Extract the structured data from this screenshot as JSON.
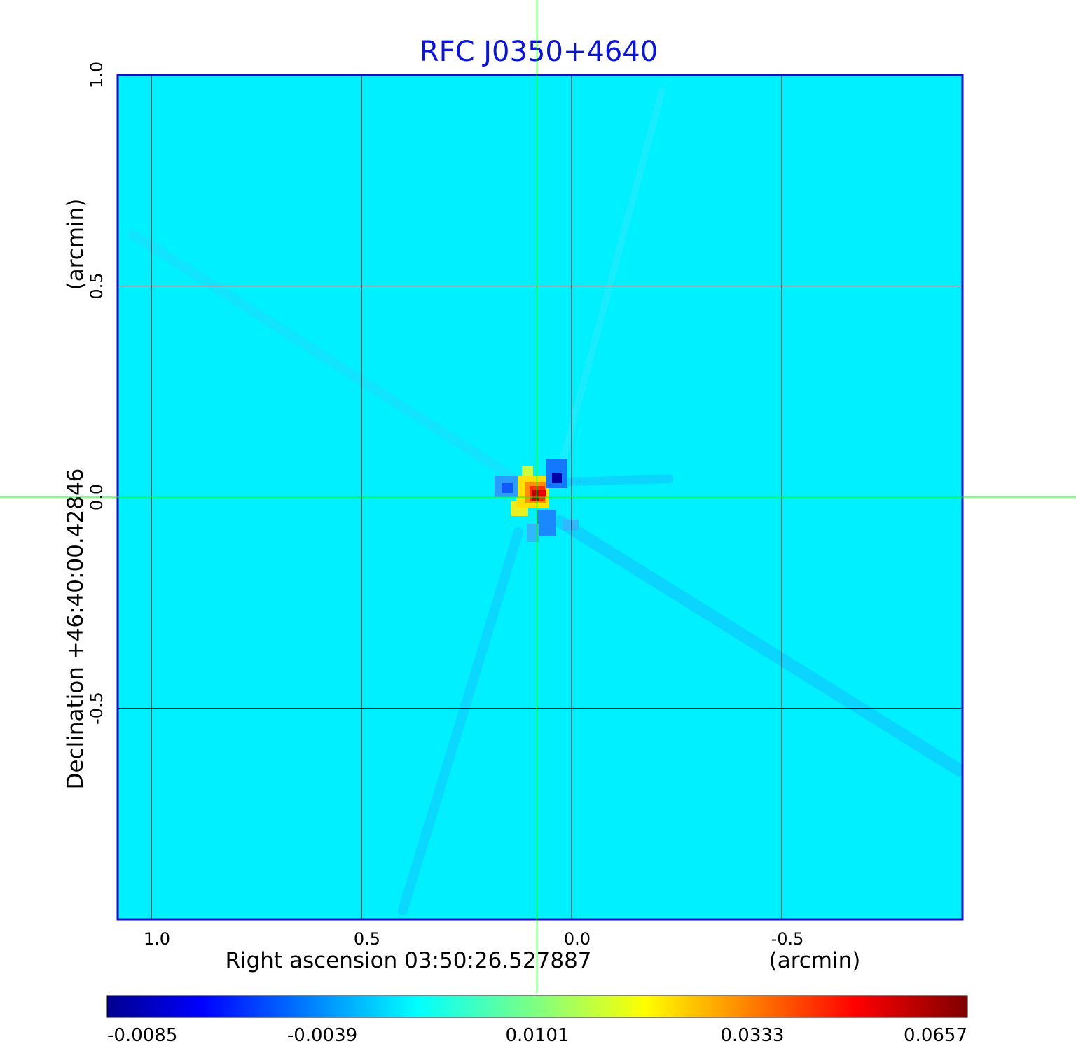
{
  "chart_data": {
    "type": "heatmap",
    "title": "RFC J0350+4640",
    "xlabel": "Right ascension  03:50:26.527887",
    "xunit": "(arcmin)",
    "ylabel": "Declination  +46:40:00.42846",
    "yunit": "(arcmin)",
    "x_ticks": [
      1.0,
      0.5,
      0.0,
      -0.5
    ],
    "x_tick_labels": [
      "1.0",
      "0.5",
      "0.0",
      "-0.5"
    ],
    "y_ticks": [
      1.0,
      0.5,
      0.0,
      -0.5
    ],
    "y_tick_labels": [
      "1.0",
      "0.5",
      "0.0",
      "-0.5"
    ],
    "xlim": [
      1.08,
      -0.93
    ],
    "ylim": [
      -1.0,
      1.0
    ],
    "grid": true,
    "crosshair": {
      "x": 0.083,
      "y": 0.0,
      "color": "#00ff00"
    },
    "colormap": "jet",
    "colorbar": {
      "ticks": [
        -0.0085,
        -0.0039,
        0.0101,
        0.0333,
        0.0657
      ],
      "tick_labels": [
        "-0.0085",
        "-0.0039",
        "0.0101",
        "0.0333",
        "0.0657"
      ],
      "background_value": 0.0
    },
    "source_peak": {
      "x": 0.083,
      "y": 0.0,
      "value": 0.0657
    },
    "frame_color": "#1010c8",
    "grid_color": "#000000"
  }
}
